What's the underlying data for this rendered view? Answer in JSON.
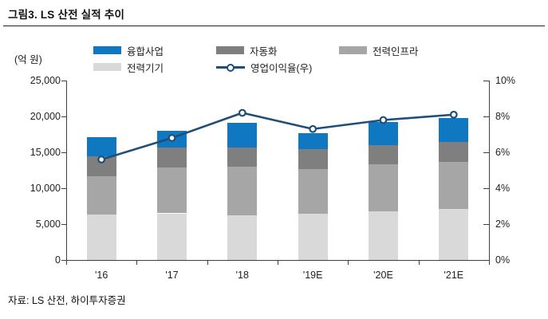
{
  "figure": {
    "title": "그림3. LS 산전 실적 추이",
    "source": "자료: LS 산전, 하이투자증권"
  },
  "chart_data": {
    "type": "bar",
    "subtype": "stacked-column-with-line",
    "title": "그림3. LS 산전 실적 추이",
    "unit_label": "(억 원)",
    "categories": [
      "'16",
      "'17",
      "'18",
      "'19E",
      "'20E",
      "'21E"
    ],
    "series": [
      {
        "name": "전력기기",
        "color": "#d9d9d9",
        "values": [
          6300,
          6500,
          6200,
          6400,
          6800,
          7100
        ]
      },
      {
        "name": "전력인프라",
        "color": "#a6a6a6",
        "values": [
          5400,
          6400,
          6800,
          6300,
          6500,
          6600
        ]
      },
      {
        "name": "자동화",
        "color": "#7f7f7f",
        "values": [
          2700,
          2800,
          2700,
          2700,
          2700,
          2700
        ]
      },
      {
        "name": "융합사업",
        "color": "#0f78c0",
        "values": [
          2700,
          2300,
          3400,
          2300,
          3200,
          3400
        ]
      }
    ],
    "totals": [
      17100,
      18000,
      19100,
      17700,
      19200,
      19800
    ],
    "line_series": {
      "name": "영업이익율(우)",
      "color": "#1f4e79",
      "axis": "right",
      "values": [
        5.6,
        6.8,
        8.2,
        7.3,
        7.8,
        8.1
      ]
    },
    "left_axis": {
      "min": 0,
      "max": 25000,
      "tick_labels": [
        "0",
        "5,000",
        "10,000",
        "15,000",
        "20,000",
        "25,000"
      ]
    },
    "right_axis": {
      "min": 0,
      "max": 10,
      "tick_labels": [
        "0%",
        "2%",
        "4%",
        "6%",
        "8%",
        "10%"
      ]
    },
    "legend": [
      "융합사업",
      "자동화",
      "전력인프라",
      "전력기기",
      "영업이익율(우)"
    ],
    "legend_position": "top",
    "grid": false
  }
}
